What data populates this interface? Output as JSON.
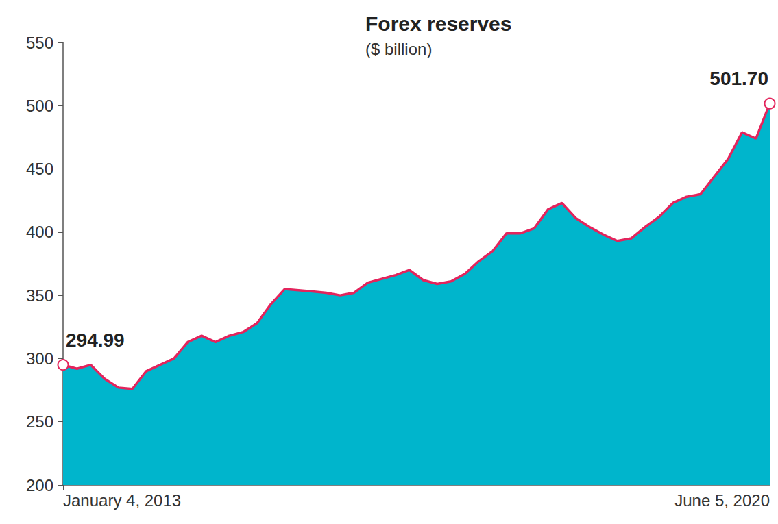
{
  "chart_data": {
    "type": "area",
    "title": "Forex reserves",
    "subtitle": "($ billion)",
    "categories": [
      "January 4, 2013",
      null,
      null,
      null,
      null,
      null,
      null,
      null,
      null,
      null,
      null,
      null,
      null,
      null,
      null,
      null,
      null,
      null,
      null,
      null,
      null,
      null,
      null,
      null,
      null,
      null,
      null,
      null,
      null,
      null,
      null,
      null,
      null,
      null,
      null,
      null,
      null,
      null,
      null,
      null,
      null,
      null,
      null,
      null,
      null,
      null,
      null,
      null,
      null,
      null,
      null,
      "June 5, 2020"
    ],
    "values": [
      294.99,
      292,
      295,
      284,
      277,
      276,
      290,
      295,
      300,
      313,
      318,
      313,
      318,
      321,
      328,
      343,
      355,
      354,
      353,
      352,
      350,
      352,
      360,
      363,
      366,
      370,
      362,
      359,
      361,
      367,
      377,
      385,
      399,
      399,
      403,
      418,
      423,
      411,
      404,
      398,
      393,
      395,
      404,
      412,
      423,
      428,
      430,
      444,
      458,
      479,
      474,
      501.7
    ],
    "value_labels": [
      "294.99",
      null,
      null,
      null,
      null,
      null,
      null,
      null,
      null,
      null,
      null,
      null,
      null,
      null,
      null,
      null,
      null,
      null,
      null,
      null,
      null,
      null,
      null,
      null,
      null,
      null,
      null,
      null,
      null,
      null,
      null,
      null,
      null,
      null,
      null,
      null,
      null,
      null,
      null,
      null,
      null,
      null,
      null,
      null,
      null,
      null,
      null,
      null,
      null,
      null,
      null,
      "501.70"
    ],
    "color": "#e3245c",
    "marker": "circle",
    "ylim": [
      200,
      550
    ],
    "yticks": [
      200,
      250,
      300,
      350,
      400,
      450,
      500,
      550
    ],
    "grid": false
  }
}
